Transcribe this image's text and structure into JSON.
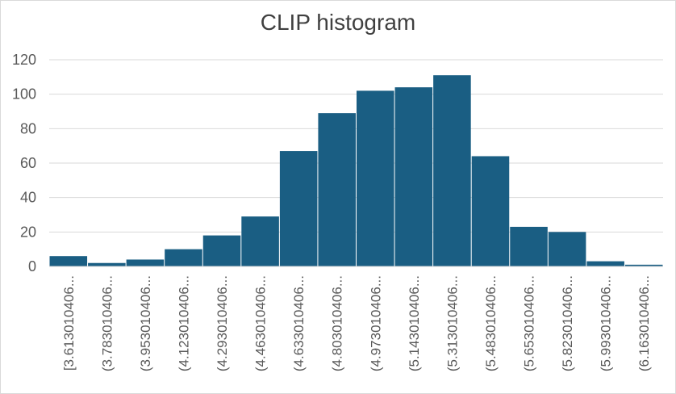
{
  "chart_data": {
    "type": "bar",
    "title": "CLIP histogram",
    "xlabel": "",
    "ylabel": "",
    "ylim": [
      0,
      120
    ],
    "yticks": [
      0,
      20,
      40,
      60,
      80,
      100,
      120
    ],
    "grid": true,
    "legend": "none",
    "bar_color": "#1a5e83",
    "gridline_color": "#d9d9d9",
    "categories": [
      "[3.613010406...",
      "(3.783010406...",
      "(3.953010406...",
      "(4.123010406...",
      "(4.293010406...",
      "(4.463010406...",
      "(4.633010406...",
      "(4.803010406...",
      "(4.973010406...",
      "(5.143010406...",
      "(5.313010406...",
      "(5.483010406...",
      "(5.653010406...",
      "(5.823010406...",
      "(5.993010406...",
      "(6.163010406..."
    ],
    "values": [
      6,
      2,
      4,
      10,
      18,
      29,
      67,
      89,
      102,
      104,
      111,
      64,
      23,
      20,
      3,
      1
    ]
  }
}
